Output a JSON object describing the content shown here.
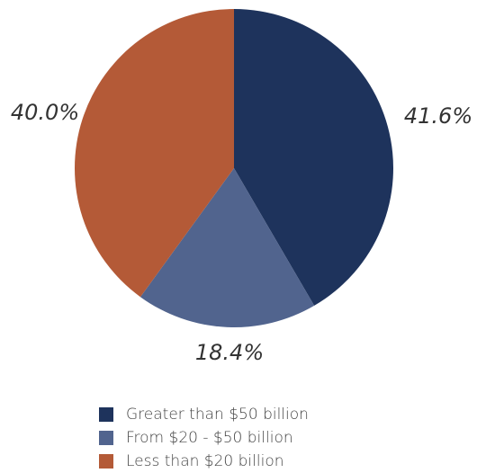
{
  "chart_data": {
    "type": "pie",
    "slices": [
      {
        "label": "Greater than $50 billion",
        "value": 41.6,
        "display": "41.6%",
        "color": "#1e335c"
      },
      {
        "label": "From $20 - $50 billion",
        "value": 18.4,
        "display": "18.4%",
        "color": "#51648e"
      },
      {
        "label": "Less than $20 billion",
        "value": 40.0,
        "display": "40.0%",
        "color": "#b45a37"
      }
    ],
    "start_angle": "12 o'clock, clockwise",
    "legend_position": "bottom"
  }
}
